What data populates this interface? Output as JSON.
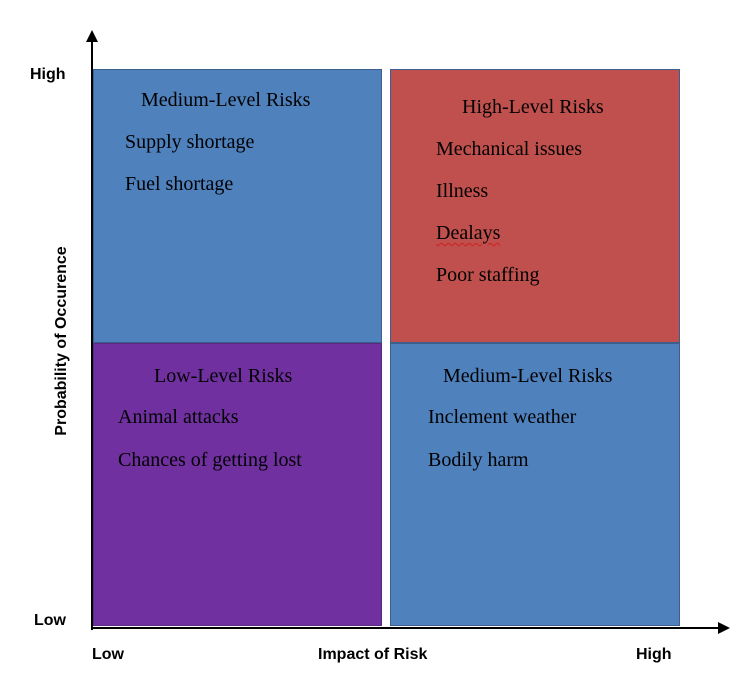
{
  "axes": {
    "y_title": "Probability of Occurence",
    "y_high": "High",
    "y_low": "Low",
    "x_title": "Impact of Risk",
    "x_low": "Low",
    "x_high": "High"
  },
  "quadrants": {
    "top_left": {
      "title": "Medium-Level Risks",
      "items": [
        "Supply shortage",
        "Fuel shortage"
      ],
      "color": "#4f81bd"
    },
    "top_right": {
      "title": "High-Level Risks",
      "items": [
        "Mechanical issues",
        "Illness",
        "Dealays",
        "Poor staffing"
      ],
      "color": "#c0504d"
    },
    "bottom_left": {
      "title": "Low-Level Risks",
      "items": [
        "Animal attacks",
        "Chances of getting lost"
      ],
      "color": "#7030a0"
    },
    "bottom_right": {
      "title": "Medium-Level Risks",
      "items": [
        "Inclement weather",
        "Bodily harm"
      ],
      "color": "#4f81bd"
    }
  }
}
